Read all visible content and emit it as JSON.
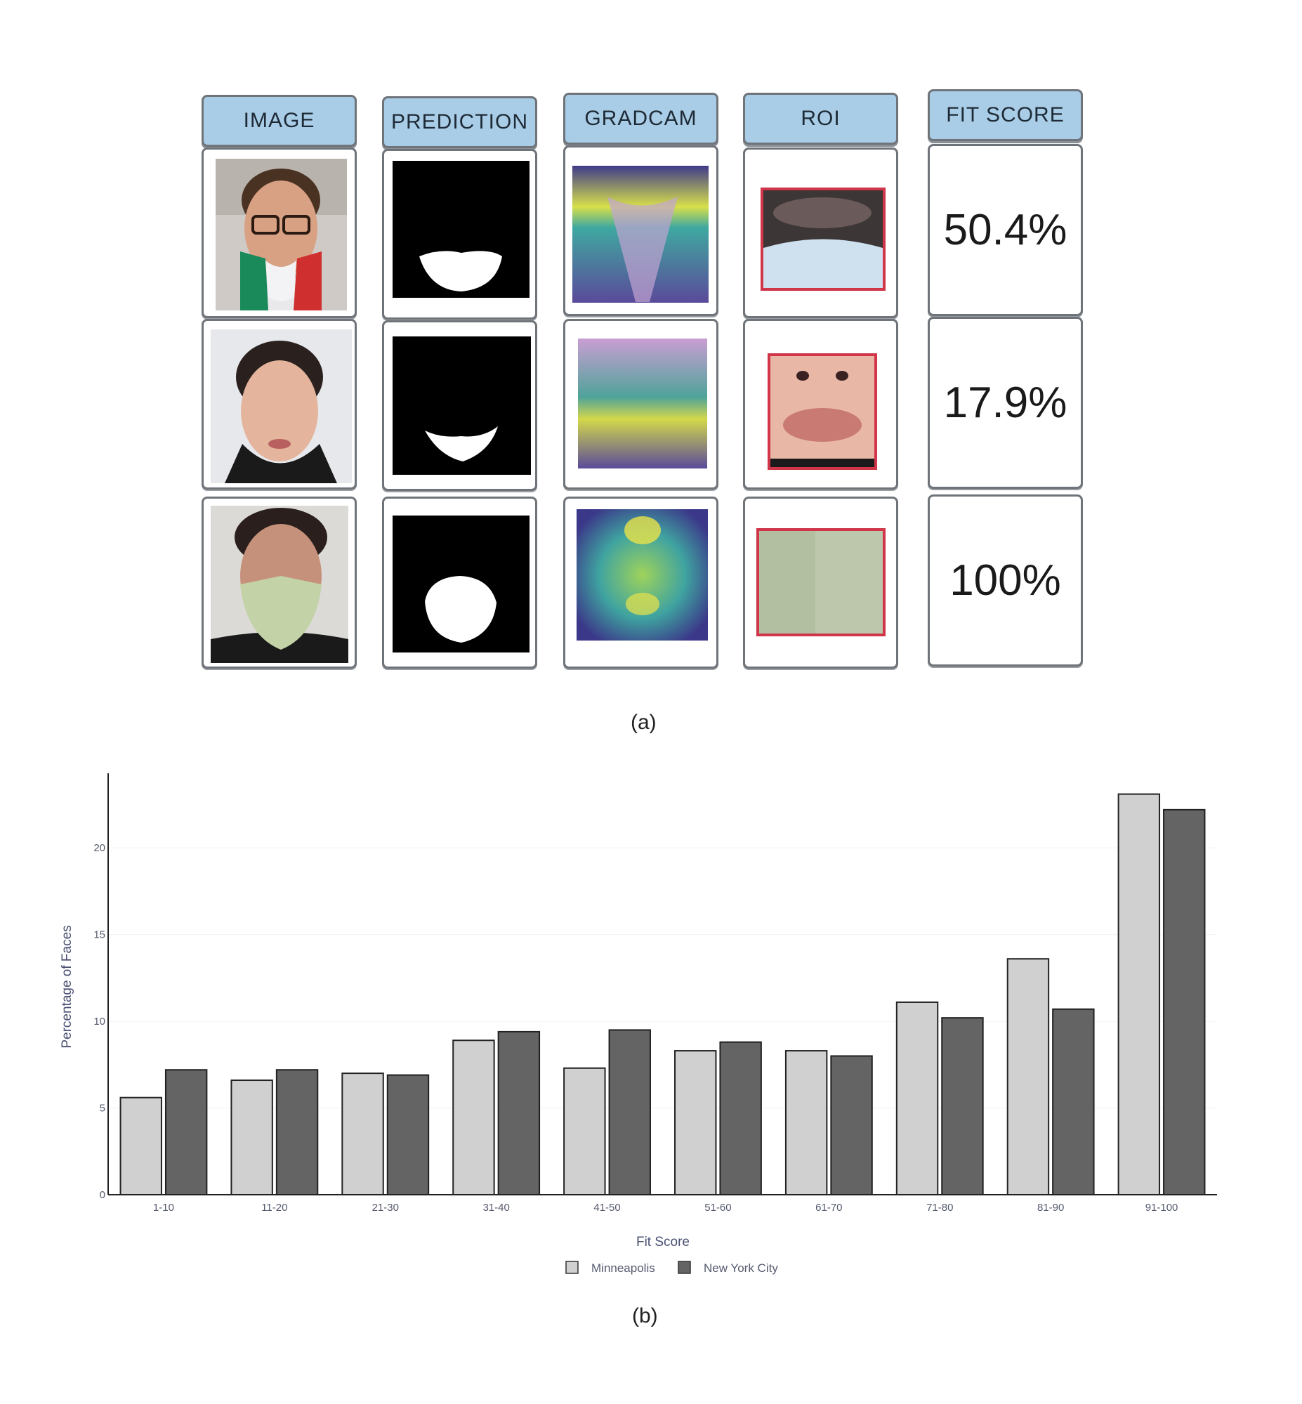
{
  "panel_a": {
    "headers": [
      "IMAGE",
      "PREDICTION",
      "GRADCAM",
      "ROI",
      "FIT SCORE"
    ],
    "rows": [
      {
        "fit_score": "50.4%"
      },
      {
        "fit_score": "17.9%"
      },
      {
        "fit_score": "100%"
      }
    ],
    "caption": "(a)"
  },
  "panel_b": {
    "caption": "(b)"
  },
  "colors": {
    "header_fill": "#a9cde6",
    "roi_border": "#d0354a",
    "minneapolis": "#d0d0d0",
    "new_york_city": "#646464"
  },
  "chart_data": {
    "type": "bar",
    "categories": [
      "1-10",
      "11-20",
      "21-30",
      "31-40",
      "41-50",
      "51-60",
      "61-70",
      "71-80",
      "81-90",
      "91-100"
    ],
    "series": [
      {
        "name": "Minneapolis",
        "values": [
          5.6,
          6.6,
          7.0,
          8.9,
          7.3,
          8.3,
          8.3,
          11.1,
          13.6,
          23.1
        ]
      },
      {
        "name": "New York City",
        "values": [
          7.2,
          7.2,
          6.9,
          9.4,
          9.5,
          8.8,
          8.0,
          10.2,
          10.7,
          22.2
        ]
      }
    ],
    "xlabel": "Fit Score",
    "ylabel": "Percentage of Faces",
    "yticks": [
      0,
      5,
      10,
      15,
      20
    ],
    "ylim": [
      0,
      24.3
    ],
    "grid": false,
    "legend_position": "bottom-center"
  }
}
